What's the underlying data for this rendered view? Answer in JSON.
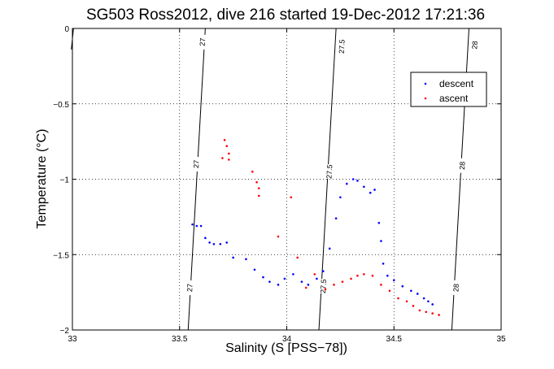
{
  "chart_data": {
    "type": "scatter",
    "title": "SG503 Ross2012, dive 216 started 19-Dec-2012 17:21:36",
    "xlabel": "Salinity (S [PSS−78])",
    "ylabel": "Temperature (°C)",
    "xlim": [
      33,
      35
    ],
    "ylim": [
      -2,
      0
    ],
    "xticks": [
      "33",
      "33.5",
      "34",
      "34.5",
      "35"
    ],
    "yticks": [
      "0",
      "−0.5",
      "−1",
      "−1.5",
      "−2"
    ],
    "grid": true,
    "legend_position": "top-right",
    "series": [
      {
        "name": "descent",
        "color": "#0000ff",
        "points": [
          [
            33.56,
            -1.3
          ],
          [
            33.58,
            -1.31
          ],
          [
            33.6,
            -1.31
          ],
          [
            33.62,
            -1.39
          ],
          [
            33.64,
            -1.42
          ],
          [
            33.66,
            -1.43
          ],
          [
            33.69,
            -1.43
          ],
          [
            33.72,
            -1.42
          ],
          [
            33.75,
            -1.52
          ],
          [
            33.81,
            -1.53
          ],
          [
            33.85,
            -1.6
          ],
          [
            33.89,
            -1.65
          ],
          [
            33.92,
            -1.68
          ],
          [
            33.96,
            -1.7
          ],
          [
            33.99,
            -1.66
          ],
          [
            34.03,
            -1.63
          ],
          [
            34.07,
            -1.68
          ],
          [
            34.1,
            -1.7
          ],
          [
            34.14,
            -1.66
          ],
          [
            34.17,
            -1.61
          ],
          [
            34.2,
            -1.46
          ],
          [
            34.23,
            -1.26
          ],
          [
            34.25,
            -1.12
          ],
          [
            34.28,
            -1.03
          ],
          [
            34.31,
            -1.0
          ],
          [
            34.33,
            -1.01
          ],
          [
            34.36,
            -1.05
          ],
          [
            34.39,
            -1.09
          ],
          [
            34.41,
            -1.07
          ],
          [
            34.43,
            -1.29
          ],
          [
            34.44,
            -1.41
          ],
          [
            34.45,
            -1.56
          ],
          [
            34.47,
            -1.64
          ],
          [
            34.5,
            -1.67
          ],
          [
            34.54,
            -1.71
          ],
          [
            34.58,
            -1.74
          ],
          [
            34.61,
            -1.76
          ],
          [
            34.64,
            -1.79
          ],
          [
            34.66,
            -1.81
          ],
          [
            34.68,
            -1.83
          ]
        ]
      },
      {
        "name": "ascent",
        "color": "#ff0000",
        "points": [
          [
            33.71,
            -0.74
          ],
          [
            33.72,
            -0.78
          ],
          [
            33.73,
            -0.83
          ],
          [
            33.73,
            -0.87
          ],
          [
            33.7,
            -0.86
          ],
          [
            33.84,
            -0.95
          ],
          [
            33.86,
            -1.02
          ],
          [
            33.87,
            -1.06
          ],
          [
            33.87,
            -1.11
          ],
          [
            33.96,
            -1.38
          ],
          [
            34.02,
            -1.12
          ],
          [
            34.05,
            -1.52
          ],
          [
            34.09,
            -1.72
          ],
          [
            34.13,
            -1.63
          ],
          [
            34.18,
            -1.73
          ],
          [
            34.22,
            -1.7
          ],
          [
            34.26,
            -1.68
          ],
          [
            34.3,
            -1.66
          ],
          [
            34.33,
            -1.64
          ],
          [
            34.36,
            -1.63
          ],
          [
            34.4,
            -1.64
          ],
          [
            34.44,
            -1.7
          ],
          [
            34.48,
            -1.74
          ],
          [
            34.52,
            -1.79
          ],
          [
            34.56,
            -1.81
          ],
          [
            34.59,
            -1.84
          ],
          [
            34.62,
            -1.87
          ],
          [
            34.65,
            -1.88
          ],
          [
            34.68,
            -1.89
          ],
          [
            34.71,
            -1.9
          ]
        ]
      }
    ],
    "contours": [
      {
        "label": "27",
        "line": [
          [
            33.54,
            -2.0
          ],
          [
            33.62,
            0.0
          ]
        ],
        "label_positions": [
          [
            33.607,
            -0.09
          ],
          [
            33.578,
            -0.9
          ],
          [
            33.548,
            -1.72
          ]
        ]
      },
      {
        "label": "27.5",
        "line": [
          [
            34.15,
            -2.0
          ],
          [
            34.23,
            0.0
          ]
        ],
        "label_positions": [
          [
            34.257,
            -0.12
          ],
          [
            34.199,
            -0.95
          ],
          [
            34.171,
            -1.71
          ]
        ]
      },
      {
        "label": "28",
        "line": [
          [
            34.77,
            -2.0
          ],
          [
            34.85,
            0.0
          ]
        ],
        "label_positions": [
          [
            34.877,
            -0.11
          ],
          [
            34.819,
            -0.91
          ],
          [
            34.79,
            -1.72
          ]
        ]
      },
      {
        "label": "",
        "line": [
          [
            32.995,
            -0.14
          ],
          [
            33.005,
            0.0
          ]
        ],
        "label_positions": []
      }
    ]
  }
}
